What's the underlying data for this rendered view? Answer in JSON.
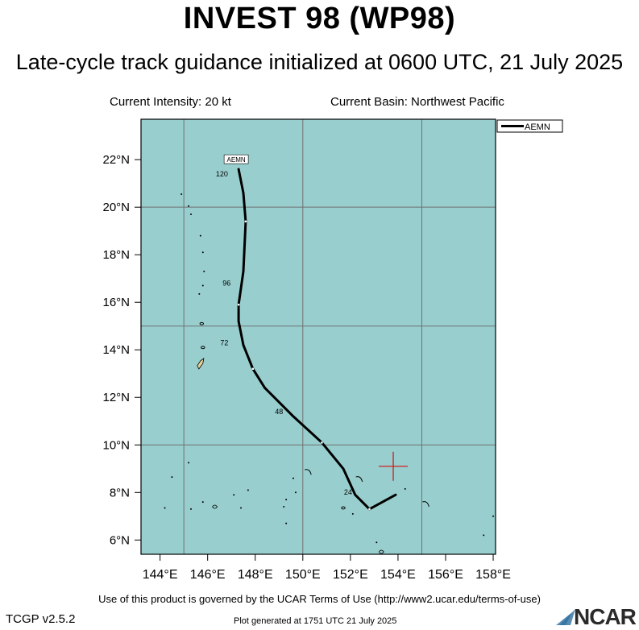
{
  "header": {
    "title": "INVEST 98 (WP98)",
    "subtitle": "Late-cycle track guidance initialized at 0600 UTC, 21 July 2025",
    "current_intensity": "Current Intensity: 20 kt",
    "current_basin": "Current Basin: Northwest Pacific"
  },
  "map": {
    "lon_range": [
      143.2,
      158.1
    ],
    "lat_range": [
      5.4,
      23.7
    ],
    "lon_ticks": [
      144,
      146,
      148,
      150,
      152,
      154,
      156,
      158
    ],
    "lon_tick_labels": [
      "144°E",
      "146°E",
      "148°E",
      "150°E",
      "152°E",
      "154°E",
      "156°E",
      "158°E"
    ],
    "lat_ticks": [
      6,
      8,
      10,
      12,
      14,
      16,
      18,
      20,
      22
    ],
    "lat_tick_labels": [
      "6°N",
      "8°N",
      "10°N",
      "12°N",
      "14°N",
      "16°N",
      "18°N",
      "20°N",
      "22°N"
    ],
    "grid_lons": [
      145,
      150,
      155
    ],
    "grid_lats": [
      10,
      15,
      20
    ],
    "ocean_color": "#99cece",
    "grid_color": "#707070",
    "current_position": {
      "lon": 153.8,
      "lat": 9.1,
      "color": "#d01010"
    }
  },
  "legend": {
    "entries": [
      "AEMN"
    ],
    "placement": "top-right"
  },
  "track": {
    "model": "AEMN",
    "color": "#000000",
    "points": [
      {
        "lon": 153.9,
        "lat": 7.9
      },
      {
        "lon": 152.8,
        "lat": 7.3
      },
      {
        "lon": 152.2,
        "lat": 7.9
      },
      {
        "lon": 151.7,
        "lat": 9.0
      },
      {
        "lon": 150.8,
        "lat": 10.1
      },
      {
        "lon": 149.6,
        "lat": 11.2
      },
      {
        "lon": 148.4,
        "lat": 12.4
      },
      {
        "lon": 147.9,
        "lat": 13.2
      },
      {
        "lon": 147.5,
        "lat": 14.2
      },
      {
        "lon": 147.3,
        "lat": 15.2
      },
      {
        "lon": 147.3,
        "lat": 15.9
      },
      {
        "lon": 147.5,
        "lat": 17.3
      },
      {
        "lon": 147.6,
        "lat": 19.4
      },
      {
        "lon": 147.5,
        "lat": 20.6
      },
      {
        "lon": 147.3,
        "lat": 21.6
      }
    ],
    "markers": [
      {
        "lon": 152.8,
        "lat": 7.3
      },
      {
        "lon": 150.8,
        "lat": 10.1
      },
      {
        "lon": 147.9,
        "lat": 13.2
      },
      {
        "lon": 147.3,
        "lat": 15.9
      },
      {
        "lon": 147.6,
        "lat": 19.4
      }
    ],
    "hour_labels": [
      {
        "text": "24",
        "lon": 151.9,
        "lat": 7.9
      },
      {
        "text": "48",
        "lon": 149.0,
        "lat": 11.3
      },
      {
        "text": "72",
        "lon": 146.7,
        "lat": 14.2
      },
      {
        "text": "96",
        "lon": 146.8,
        "lat": 16.7
      },
      {
        "text": "120",
        "lon": 146.6,
        "lat": 21.3
      }
    ],
    "end_label": {
      "text": "AEMN",
      "lon": 147.2,
      "lat": 22.0
    }
  },
  "islands": [
    {
      "lon": 145.7,
      "lat": 13.4,
      "kind": "guam"
    },
    {
      "lon": 145.8,
      "lat": 14.1,
      "kind": "small"
    },
    {
      "lon": 145.75,
      "lat": 15.1,
      "kind": "small"
    },
    {
      "lon": 145.65,
      "lat": 16.35,
      "kind": "dot"
    },
    {
      "lon": 145.8,
      "lat": 16.7,
      "kind": "dot"
    },
    {
      "lon": 145.85,
      "lat": 17.3,
      "kind": "dot"
    },
    {
      "lon": 145.8,
      "lat": 18.1,
      "kind": "dot"
    },
    {
      "lon": 145.7,
      "lat": 18.8,
      "kind": "dot"
    },
    {
      "lon": 145.3,
      "lat": 19.7,
      "kind": "dot"
    },
    {
      "lon": 145.2,
      "lat": 20.05,
      "kind": "dot"
    },
    {
      "lon": 144.9,
      "lat": 20.55,
      "kind": "dot"
    },
    {
      "lon": 145.2,
      "lat": 9.25,
      "kind": "dot"
    },
    {
      "lon": 144.5,
      "lat": 8.65,
      "kind": "dot"
    },
    {
      "lon": 144.2,
      "lat": 7.35,
      "kind": "dot"
    },
    {
      "lon": 145.3,
      "lat": 7.3,
      "kind": "dot"
    },
    {
      "lon": 145.8,
      "lat": 7.6,
      "kind": "dot"
    },
    {
      "lon": 146.3,
      "lat": 7.4,
      "kind": "ring"
    },
    {
      "lon": 147.1,
      "lat": 7.9,
      "kind": "dot"
    },
    {
      "lon": 147.7,
      "lat": 8.1,
      "kind": "dot"
    },
    {
      "lon": 147.4,
      "lat": 7.35,
      "kind": "dot"
    },
    {
      "lon": 149.2,
      "lat": 7.4,
      "kind": "dot"
    },
    {
      "lon": 149.3,
      "lat": 7.7,
      "kind": "dot"
    },
    {
      "lon": 149.7,
      "lat": 8.0,
      "kind": "dot"
    },
    {
      "lon": 149.6,
      "lat": 8.6,
      "kind": "dot"
    },
    {
      "lon": 149.3,
      "lat": 6.7,
      "kind": "dot"
    },
    {
      "lon": 150.25,
      "lat": 8.85,
      "kind": "arc"
    },
    {
      "lon": 152.4,
      "lat": 8.55,
      "kind": "arc"
    },
    {
      "lon": 151.7,
      "lat": 7.35,
      "kind": "small"
    },
    {
      "lon": 152.1,
      "lat": 7.1,
      "kind": "dot"
    },
    {
      "lon": 153.1,
      "lat": 5.9,
      "kind": "dot"
    },
    {
      "lon": 153.3,
      "lat": 5.5,
      "kind": "ring"
    },
    {
      "lon": 154.3,
      "lat": 8.15,
      "kind": "dot"
    },
    {
      "lon": 155.2,
      "lat": 7.5,
      "kind": "arc"
    },
    {
      "lon": 157.6,
      "lat": 6.2,
      "kind": "dot"
    },
    {
      "lon": 158.0,
      "lat": 7.0,
      "kind": "dot"
    }
  ],
  "footer": {
    "terms": "Use of this product is governed by the UCAR Terms of Use (http://www2.ucar.edu/terms-of-use)",
    "version": "TCGP v2.5.2",
    "generated": "Plot generated at 1751 UTC   21 July 2025",
    "logo_text": "NCAR"
  }
}
